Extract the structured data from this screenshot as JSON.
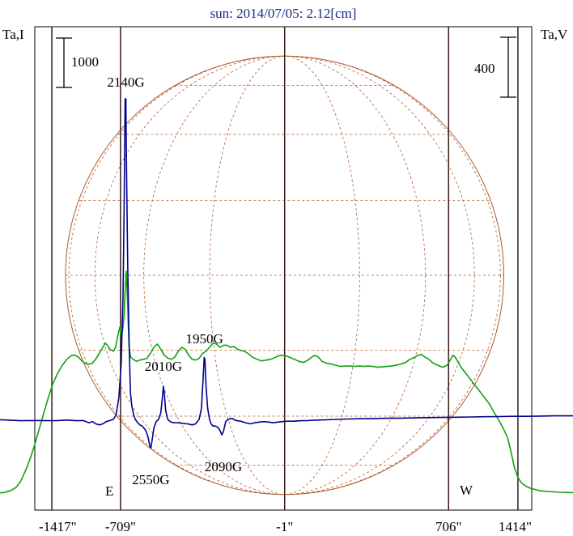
{
  "chart_data": {
    "type": "line",
    "title": "sun: 2014/07/05: 2.12[cm]",
    "left_axis_label": "Ta,I",
    "right_axis_label": "Ta,V",
    "x_unit": "arcsec",
    "xlim": [
      -1417,
      1414
    ],
    "x_ticks": [
      {
        "value": -1417,
        "label": "-1417\""
      },
      {
        "value": -709,
        "label": "-709\""
      },
      {
        "value": -1,
        "label": "-1\""
      },
      {
        "value": 706,
        "label": "706\""
      },
      {
        "value": 1414,
        "label": "1414\""
      }
    ],
    "left_scale_bar": {
      "label": "1000",
      "value": 1000
    },
    "right_scale_bar": {
      "label": "400",
      "value": 400
    },
    "vertical_lines_x": [
      -1005,
      -709,
      -1,
      706,
      1005
    ],
    "limb_labels": {
      "east": "E",
      "west": "W"
    },
    "disk": {
      "center_x": -1,
      "radius": 945,
      "grid": true
    },
    "series": [
      {
        "color": "#12a012",
        "axis": "left",
        "points": [
          [
            -1417,
            50
          ],
          [
            -1390,
            60
          ],
          [
            -1360,
            45
          ],
          [
            -1330,
            40
          ],
          [
            -1300,
            50
          ],
          [
            -1270,
            45
          ],
          [
            -1240,
            60
          ],
          [
            -1210,
            75
          ],
          [
            -1180,
            130
          ],
          [
            -1160,
            200
          ],
          [
            -1140,
            350
          ],
          [
            -1120,
            600
          ],
          [
            -1100,
            900
          ],
          [
            -1080,
            1250
          ],
          [
            -1060,
            1650
          ],
          [
            -1040,
            2050
          ],
          [
            -1020,
            2450
          ],
          [
            -1000,
            2800
          ],
          [
            -980,
            3050
          ],
          [
            -960,
            3250
          ],
          [
            -940,
            3400
          ],
          [
            -920,
            3500
          ],
          [
            -905,
            3500
          ],
          [
            -890,
            3450
          ],
          [
            -870,
            3330
          ],
          [
            -850,
            3270
          ],
          [
            -830,
            3300
          ],
          [
            -810,
            3450
          ],
          [
            -790,
            3650
          ],
          [
            -775,
            3800
          ],
          [
            -765,
            3750
          ],
          [
            -755,
            3650
          ],
          [
            -740,
            3600
          ],
          [
            -730,
            3700
          ],
          [
            -720,
            4000
          ],
          [
            -712,
            4200
          ],
          [
            -705,
            3950
          ],
          [
            -698,
            4200
          ],
          [
            -693,
            4550
          ],
          [
            -688,
            5200
          ],
          [
            -684,
            5600
          ],
          [
            -680,
            5100
          ],
          [
            -676,
            4400
          ],
          [
            -672,
            3700
          ],
          [
            -665,
            3450
          ],
          [
            -655,
            3400
          ],
          [
            -640,
            3350
          ],
          [
            -625,
            3380
          ],
          [
            -610,
            3400
          ],
          [
            -595,
            3420
          ],
          [
            -580,
            3550
          ],
          [
            -565,
            3700
          ],
          [
            -550,
            3780
          ],
          [
            -535,
            3650
          ],
          [
            -520,
            3500
          ],
          [
            -505,
            3430
          ],
          [
            -490,
            3400
          ],
          [
            -475,
            3450
          ],
          [
            -460,
            3600
          ],
          [
            -445,
            3700
          ],
          [
            -430,
            3650
          ],
          [
            -415,
            3500
          ],
          [
            -400,
            3400
          ],
          [
            -385,
            3380
          ],
          [
            -370,
            3420
          ],
          [
            -355,
            3550
          ],
          [
            -340,
            3600
          ],
          [
            -325,
            3700
          ],
          [
            -310,
            3800
          ],
          [
            -295,
            3780
          ],
          [
            -280,
            3700
          ],
          [
            -265,
            3750
          ],
          [
            -250,
            3750
          ],
          [
            -235,
            3700
          ],
          [
            -220,
            3720
          ],
          [
            -205,
            3650
          ],
          [
            -190,
            3620
          ],
          [
            -175,
            3600
          ],
          [
            -160,
            3550
          ],
          [
            -140,
            3450
          ],
          [
            -120,
            3400
          ],
          [
            -100,
            3360
          ],
          [
            -80,
            3380
          ],
          [
            -60,
            3400
          ],
          [
            -40,
            3450
          ],
          [
            -20,
            3500
          ],
          [
            -1,
            3500
          ],
          [
            20,
            3450
          ],
          [
            40,
            3400
          ],
          [
            60,
            3350
          ],
          [
            80,
            3320
          ],
          [
            100,
            3380
          ],
          [
            115,
            3450
          ],
          [
            130,
            3500
          ],
          [
            145,
            3450
          ],
          [
            160,
            3350
          ],
          [
            180,
            3300
          ],
          [
            200,
            3280
          ],
          [
            220,
            3250
          ],
          [
            240,
            3220
          ],
          [
            260,
            3230
          ],
          [
            280,
            3230
          ],
          [
            300,
            3220
          ],
          [
            320,
            3230
          ],
          [
            340,
            3220
          ],
          [
            360,
            3230
          ],
          [
            380,
            3220
          ],
          [
            400,
            3200
          ],
          [
            420,
            3210
          ],
          [
            440,
            3220
          ],
          [
            460,
            3230
          ],
          [
            480,
            3250
          ],
          [
            500,
            3280
          ],
          [
            520,
            3320
          ],
          [
            540,
            3400
          ],
          [
            560,
            3450
          ],
          [
            575,
            3500
          ],
          [
            590,
            3520
          ],
          [
            605,
            3450
          ],
          [
            620,
            3400
          ],
          [
            640,
            3300
          ],
          [
            660,
            3250
          ],
          [
            680,
            3200
          ],
          [
            700,
            3250
          ],
          [
            715,
            3400
          ],
          [
            725,
            3500
          ],
          [
            735,
            3450
          ],
          [
            745,
            3350
          ],
          [
            760,
            3200
          ],
          [
            780,
            3050
          ],
          [
            800,
            2900
          ],
          [
            820,
            2750
          ],
          [
            840,
            2600
          ],
          [
            860,
            2450
          ],
          [
            880,
            2300
          ],
          [
            900,
            2100
          ],
          [
            920,
            1900
          ],
          [
            940,
            1700
          ],
          [
            960,
            1450
          ],
          [
            975,
            1100
          ],
          [
            990,
            700
          ],
          [
            1005,
            450
          ],
          [
            1020,
            320
          ],
          [
            1040,
            230
          ],
          [
            1060,
            180
          ],
          [
            1080,
            150
          ],
          [
            1100,
            120
          ],
          [
            1130,
            100
          ],
          [
            1160,
            90
          ],
          [
            1190,
            80
          ],
          [
            1220,
            75
          ],
          [
            1250,
            70
          ],
          [
            1280,
            70
          ],
          [
            1320,
            65
          ],
          [
            1360,
            60
          ],
          [
            1414,
            60
          ]
        ]
      },
      {
        "color": "#000090",
        "axis": "right",
        "points": [
          [
            -1417,
            5
          ],
          [
            -1380,
            8
          ],
          [
            -1340,
            6
          ],
          [
            -1300,
            2
          ],
          [
            -1260,
            0
          ],
          [
            -1220,
            -2
          ],
          [
            -1180,
            -4
          ],
          [
            -1140,
            -6
          ],
          [
            -1100,
            -5
          ],
          [
            -1060,
            -5
          ],
          [
            -1020,
            -6
          ],
          [
            -980,
            -5
          ],
          [
            -940,
            -3
          ],
          [
            -900,
            -6
          ],
          [
            -870,
            -5
          ],
          [
            -845,
            -15
          ],
          [
            -830,
            -10
          ],
          [
            -815,
            -20
          ],
          [
            -800,
            -25
          ],
          [
            -785,
            -20
          ],
          [
            -770,
            -10
          ],
          [
            -755,
            -5
          ],
          [
            -740,
            0
          ],
          [
            -728,
            20
          ],
          [
            -716,
            100
          ],
          [
            -706,
            250
          ],
          [
            -698,
            550
          ],
          [
            -693,
            1000
          ],
          [
            -689,
            1450
          ],
          [
            -686,
            1450
          ],
          [
            -683,
            1150
          ],
          [
            -678,
            700
          ],
          [
            -672,
            350
          ],
          [
            -666,
            120
          ],
          [
            -660,
            60
          ],
          [
            -652,
            20
          ],
          [
            -645,
            0
          ],
          [
            -635,
            -15
          ],
          [
            -625,
            -25
          ],
          [
            -615,
            -30
          ],
          [
            -600,
            -50
          ],
          [
            -590,
            -80
          ],
          [
            -583,
            -120
          ],
          [
            -578,
            -130
          ],
          [
            -572,
            -90
          ],
          [
            -565,
            -40
          ],
          [
            -555,
            -10
          ],
          [
            -545,
            0
          ],
          [
            -535,
            30
          ],
          [
            -528,
            100
          ],
          [
            -524,
            150
          ],
          [
            -520,
            120
          ],
          [
            -514,
            40
          ],
          [
            -505,
            0
          ],
          [
            -495,
            -10
          ],
          [
            -480,
            -15
          ],
          [
            -460,
            -15
          ],
          [
            -440,
            -18
          ],
          [
            -420,
            -20
          ],
          [
            -400,
            -25
          ],
          [
            -385,
            -20
          ],
          [
            -370,
            0
          ],
          [
            -360,
            50
          ],
          [
            -352,
            200
          ],
          [
            -348,
            280
          ],
          [
            -345,
            270
          ],
          [
            -340,
            150
          ],
          [
            -333,
            50
          ],
          [
            -325,
            0
          ],
          [
            -318,
            -20
          ],
          [
            -310,
            -30
          ],
          [
            -300,
            -30
          ],
          [
            -290,
            -35
          ],
          [
            -280,
            -50
          ],
          [
            -272,
            -70
          ],
          [
            -265,
            -55
          ],
          [
            -255,
            -10
          ],
          [
            -245,
            0
          ],
          [
            -230,
            5
          ],
          [
            -210,
            -5
          ],
          [
            -190,
            -8
          ],
          [
            -170,
            -15
          ],
          [
            -150,
            -20
          ],
          [
            -130,
            -15
          ],
          [
            -110,
            -12
          ],
          [
            -90,
            -10
          ],
          [
            -70,
            -12
          ],
          [
            -50,
            -15
          ],
          [
            -30,
            -12
          ],
          [
            -10,
            -10
          ],
          [
            10,
            -8
          ],
          [
            40,
            -8
          ],
          [
            70,
            -6
          ],
          [
            100,
            -5
          ],
          [
            140,
            -3
          ],
          [
            180,
            -2
          ],
          [
            220,
            0
          ],
          [
            270,
            2
          ],
          [
            320,
            3
          ],
          [
            380,
            4
          ],
          [
            440,
            5
          ],
          [
            500,
            6
          ],
          [
            560,
            7
          ],
          [
            620,
            8
          ],
          [
            680,
            9
          ],
          [
            740,
            10
          ],
          [
            800,
            11
          ],
          [
            860,
            12
          ],
          [
            920,
            13
          ],
          [
            980,
            14
          ],
          [
            1040,
            14
          ],
          [
            1100,
            15
          ],
          [
            1160,
            16
          ],
          [
            1220,
            16
          ],
          [
            1280,
            17
          ],
          [
            1340,
            17
          ],
          [
            1414,
            18
          ]
        ]
      }
    ],
    "annotations": [
      {
        "text": "2140G",
        "x": -686
      },
      {
        "text": "2010G",
        "x": -524
      },
      {
        "text": "1950G",
        "x": -347
      },
      {
        "text": "2550G",
        "x": -578
      },
      {
        "text": "2090G",
        "x": -265
      }
    ]
  }
}
